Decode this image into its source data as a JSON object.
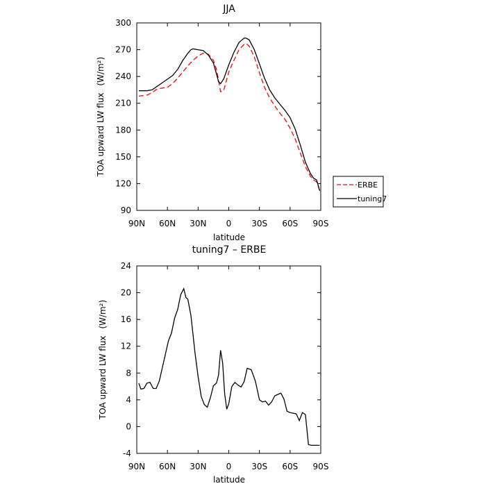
{
  "chart_data": [
    {
      "type": "line",
      "title": "JJA",
      "xlabel": "latitude",
      "ylabel": "TOA upward LW flux",
      "ylabel_unit": "(W/m²)",
      "xlim": [
        90,
        -90
      ],
      "ylim": [
        90,
        300
      ],
      "x_ticks": [
        {
          "value": 90,
          "label": "90N"
        },
        {
          "value": 60,
          "label": "60N"
        },
        {
          "value": 30,
          "label": "30N"
        },
        {
          "value": 0,
          "label": "0"
        },
        {
          "value": -30,
          "label": "30S"
        },
        {
          "value": -60,
          "label": "60S"
        },
        {
          "value": -90,
          "label": "90S"
        }
      ],
      "y_ticks": [
        90,
        120,
        150,
        180,
        210,
        240,
        270,
        300
      ],
      "legend": "right",
      "series": [
        {
          "name": "ERBE",
          "color": "#ff0000",
          "dash": "dashed",
          "x": [
            88,
            80,
            75,
            70,
            65,
            60,
            55,
            50,
            45,
            40,
            35,
            30,
            25,
            20,
            15,
            12,
            10,
            8,
            5,
            0,
            -5,
            -10,
            -15,
            -17,
            -20,
            -25,
            -30,
            -35,
            -40,
            -45,
            -50,
            -55,
            -60,
            -65,
            -70,
            -75,
            -80,
            -83,
            -86,
            -89
          ],
          "y": [
            218,
            219,
            222,
            226,
            227,
            228,
            232,
            238,
            245,
            252,
            258,
            263,
            266,
            265,
            258,
            248,
            236,
            223,
            224,
            245,
            258,
            270,
            276,
            277,
            274,
            262,
            244,
            228,
            216,
            207,
            199,
            192,
            182,
            170,
            154,
            139,
            128,
            124,
            122,
            112
          ]
        },
        {
          "name": "tuning7",
          "color": "#000000",
          "dash": "solid",
          "x": [
            88,
            80,
            75,
            70,
            65,
            60,
            55,
            50,
            45,
            40,
            37,
            35,
            30,
            25,
            20,
            15,
            12,
            10,
            8,
            5,
            0,
            -5,
            -10,
            -15,
            -17,
            -20,
            -25,
            -30,
            -35,
            -40,
            -45,
            -50,
            -55,
            -60,
            -65,
            -70,
            -75,
            -80,
            -83,
            -86,
            -89
          ],
          "y": [
            224,
            224,
            225,
            229,
            233,
            237,
            241,
            248,
            258,
            266,
            270,
            271,
            270,
            269,
            264,
            255,
            243,
            234,
            232,
            237,
            253,
            267,
            278,
            283,
            283,
            281,
            270,
            254,
            238,
            225,
            216,
            209,
            202,
            194,
            181,
            163,
            144,
            131,
            126,
            124,
            112
          ]
        }
      ]
    },
    {
      "type": "line",
      "title": "tuning7 – ERBE",
      "xlabel": "latitude",
      "ylabel": "TOA upward LW flux",
      "ylabel_unit": "(W/m²)",
      "xlim": [
        90,
        -90
      ],
      "ylim": [
        -4,
        24
      ],
      "x_ticks": [
        {
          "value": 90,
          "label": "90N"
        },
        {
          "value": 60,
          "label": "60N"
        },
        {
          "value": 30,
          "label": "30N"
        },
        {
          "value": 0,
          "label": "0"
        },
        {
          "value": -30,
          "label": "30S"
        },
        {
          "value": -60,
          "label": "60S"
        },
        {
          "value": -90,
          "label": "90S"
        }
      ],
      "y_ticks": [
        -4,
        0,
        4,
        8,
        12,
        16,
        20,
        24
      ],
      "series": [
        {
          "name": "",
          "color": "#000000",
          "dash": "solid",
          "x": [
            88,
            86,
            83,
            80,
            77,
            74,
            71,
            68,
            65,
            62,
            59,
            56,
            53,
            50,
            47,
            44,
            42,
            40,
            37,
            33,
            30,
            27,
            24,
            21,
            18,
            15,
            12,
            10,
            8,
            6,
            4,
            2,
            0,
            -3,
            -6,
            -9,
            -12,
            -15,
            -18,
            -22,
            -26,
            -30,
            -33,
            -36,
            -39,
            -42,
            -45,
            -48,
            -51,
            -54,
            -57,
            -60,
            -63,
            -66,
            -69,
            -72,
            -75,
            -78,
            -81,
            -84,
            -87,
            -89
          ],
          "y": [
            6.5,
            5.6,
            5.7,
            6.5,
            6.6,
            5.7,
            5.7,
            6.8,
            8.8,
            10.8,
            12.8,
            14,
            16.2,
            17.5,
            19.7,
            20.6,
            19.3,
            19,
            16.6,
            11,
            7.5,
            4.5,
            3.3,
            2.9,
            4.3,
            6.1,
            6.5,
            7.7,
            11.4,
            9.5,
            4.9,
            2.6,
            3.4,
            6,
            6.6,
            6.2,
            5.9,
            6.7,
            8.7,
            8.5,
            6.8,
            4,
            3.7,
            3.8,
            3.2,
            3.7,
            4.6,
            4.8,
            5,
            4.1,
            2.3,
            2.1,
            2,
            1.9,
            0.9,
            2.1,
            1.8,
            -2.7,
            -2.8,
            -2.8,
            -2.8,
            -2.8
          ]
        }
      ]
    }
  ]
}
